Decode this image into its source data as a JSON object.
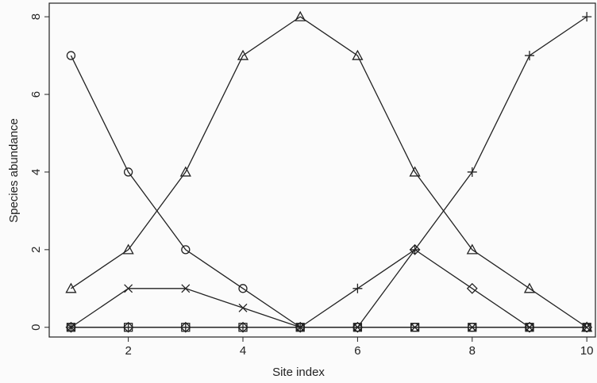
{
  "chart_data": {
    "type": "line",
    "xlabel": "Site index",
    "ylabel": "Species abundance",
    "x": [
      1,
      2,
      3,
      4,
      5,
      6,
      7,
      8,
      9,
      10
    ],
    "series": [
      {
        "color": "#222222",
        "marker": "circle",
        "values": [
          7,
          4,
          2,
          1,
          0,
          0,
          0,
          0,
          0,
          0
        ]
      },
      {
        "color": "#222222",
        "marker": "triangle",
        "values": [
          1,
          2,
          4,
          7,
          8,
          7,
          4,
          2,
          1,
          0
        ]
      },
      {
        "color": "#222222",
        "marker": "x",
        "values": [
          0,
          1,
          1,
          0.5,
          0,
          0,
          0,
          0,
          0,
          0
        ]
      },
      {
        "color": "#222222",
        "marker": "diamond",
        "values": [
          0,
          0,
          0,
          0,
          0,
          0,
          2,
          1,
          0,
          0
        ]
      },
      {
        "color": "#222222",
        "marker": "plus",
        "values": [
          0,
          0,
          0,
          0,
          0,
          1,
          2,
          4,
          7,
          8
        ]
      },
      {
        "color": "#222222",
        "marker": "square",
        "values": [
          0,
          0,
          0,
          0,
          0,
          0,
          0,
          0,
          0,
          0
        ]
      }
    ],
    "xlim": [
      0.62,
      10.15
    ],
    "ylim": [
      -0.25,
      8.35
    ],
    "xticks": [
      2,
      4,
      6,
      8,
      10
    ],
    "yticks": [
      0,
      2,
      4,
      6,
      8
    ]
  }
}
